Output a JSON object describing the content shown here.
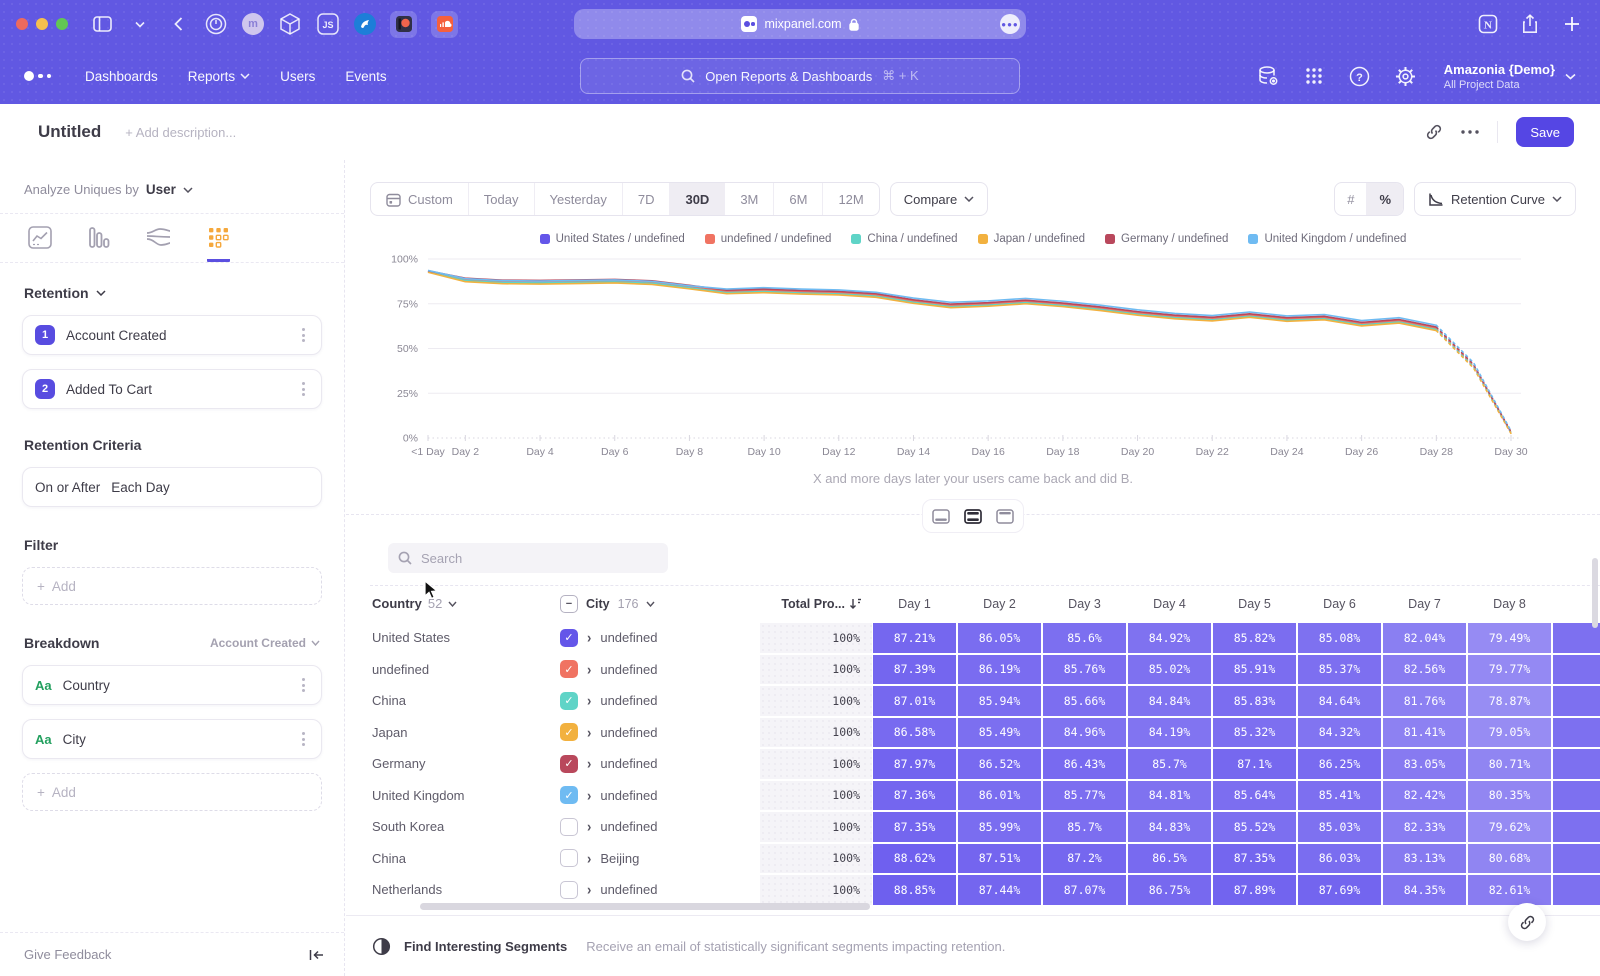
{
  "browser": {
    "url": "mixpanel.com",
    "tab_icons": [
      "sidebar-toggle",
      "tabs-chevron",
      "back",
      "onepassword",
      "m-app",
      "cube-app",
      "js-app",
      "bird-app",
      "patreon",
      "soundcloud"
    ],
    "right_icons": [
      "notion",
      "share",
      "new-tab"
    ]
  },
  "nav": {
    "menu": [
      "Dashboards",
      "Reports",
      "Users",
      "Events"
    ],
    "menu_with_chevron": "Reports",
    "search_placeholder": "Open Reports & Dashboards",
    "search_shortcut": "⌘ + K",
    "project_name": "Amazonia {Demo}",
    "project_scope": "All Project Data"
  },
  "report_header": {
    "title": "Untitled",
    "description_placeholder": "+ Add description...",
    "save_label": "Save"
  },
  "sidebar": {
    "analyze_label": "Analyze Uniques by",
    "analyze_value": "User",
    "tabs": [
      "insights",
      "funnels",
      "flows",
      "retention"
    ],
    "active_tab": "retention",
    "section_label": "Retention",
    "steps": [
      {
        "num": "1",
        "label": "Account Created"
      },
      {
        "num": "2",
        "label": "Added To Cart"
      }
    ],
    "criteria_heading": "Retention Criteria",
    "criteria_left": "On or After",
    "criteria_right": "Each Day",
    "filter_heading": "Filter",
    "add_label": "Add",
    "breakdown_heading": "Breakdown",
    "breakdown_event": "Account Created",
    "breakdowns": [
      {
        "type": "Aa",
        "label": "Country"
      },
      {
        "type": "Aa",
        "label": "City"
      }
    ],
    "give_feedback": "Give Feedback"
  },
  "toolbar": {
    "ranges": [
      "Custom",
      "Today",
      "Yesterday",
      "7D",
      "30D",
      "3M",
      "6M",
      "12M"
    ],
    "active_range": "30D",
    "compare_label": "Compare",
    "units": [
      "#",
      "%"
    ],
    "active_unit": "%",
    "chart_type": "Retention Curve"
  },
  "chart_caption": "X and more days later your users came back and did B.",
  "chart_data": {
    "type": "line",
    "title": "Retention curve by Country / City breakdown",
    "x_tick_labels": [
      "<1 Day",
      "Day 2",
      "Day 4",
      "Day 6",
      "Day 8",
      "Day 10",
      "Day 12",
      "Day 14",
      "Day 16",
      "Day 18",
      "Day 20",
      "Day 22",
      "Day 24",
      "Day 26",
      "Day 28",
      "Day 30"
    ],
    "y_tick_labels": [
      "100%",
      "75%",
      "50%",
      "25%",
      "0%"
    ],
    "y_tick_values": [
      100,
      75,
      50,
      25,
      0
    ],
    "ylim": [
      0,
      100
    ],
    "grid": true,
    "legend_position": "top",
    "dashed_from_index": 27,
    "series": [
      {
        "name": "United States / undefined",
        "color": "#6456E9",
        "values": [
          93,
          88.3,
          87.2,
          87,
          87.3,
          87.6,
          86.8,
          84.3,
          81.6,
          82.2,
          81.4,
          80.9,
          79.6,
          76.2,
          73.8,
          74.6,
          76,
          74.4,
          72.2,
          69.6,
          67.6,
          66.4,
          68.4,
          66.2,
          67,
          63.6,
          65.2,
          61,
          40,
          3
        ]
      },
      {
        "name": "undefined / undefined",
        "color": "#F07362",
        "values": [
          93.2,
          88.7,
          87.6,
          87.4,
          87.7,
          88,
          87.2,
          84.7,
          82,
          82.6,
          81.8,
          81.3,
          80,
          76.6,
          74.2,
          75,
          76.4,
          74.8,
          72.6,
          70,
          68,
          66.8,
          68.8,
          66.6,
          67.4,
          64,
          65.6,
          61.4,
          40.4,
          3.2
        ]
      },
      {
        "name": "China / undefined",
        "color": "#5FD4C7",
        "values": [
          92.8,
          87.9,
          86.8,
          86.6,
          86.9,
          87.2,
          86.4,
          83.9,
          81.2,
          81.8,
          81,
          80.5,
          79.2,
          75.8,
          73.4,
          74.2,
          75.6,
          74,
          71.8,
          69.2,
          67.2,
          66,
          68,
          65.8,
          66.6,
          63.2,
          64.8,
          60.6,
          39.6,
          2.8
        ]
      },
      {
        "name": "Japan / undefined",
        "color": "#F2B13F",
        "values": [
          92.6,
          87.3,
          86.2,
          86,
          86.3,
          86.6,
          85.8,
          83.3,
          80.6,
          81.2,
          80.4,
          79.9,
          78.6,
          75.2,
          72.8,
          73.6,
          75,
          73.4,
          71.2,
          68.6,
          66.6,
          65.4,
          67.4,
          65.2,
          66,
          62.6,
          64.2,
          60,
          39,
          2.5
        ]
      },
      {
        "name": "Germany / undefined",
        "color": "#B9485C",
        "values": [
          93.4,
          89.3,
          88.2,
          88,
          88.3,
          88.6,
          87.8,
          85.3,
          82.6,
          83.2,
          82.4,
          81.9,
          80.6,
          77.2,
          74.8,
          75.6,
          77,
          75.4,
          73.2,
          70.6,
          68.6,
          67.4,
          69.4,
          67.2,
          68,
          64.6,
          66.2,
          62,
          41,
          3.5
        ]
      },
      {
        "name": "United Kingdom / undefined",
        "color": "#6FBBF2",
        "values": [
          93.6,
          89,
          87.9,
          87.7,
          88,
          88.3,
          87.5,
          85,
          83.2,
          84,
          83.2,
          82.7,
          81.4,
          78.2,
          75.8,
          76.6,
          78,
          76.4,
          74.2,
          71.6,
          69.6,
          68.4,
          70.4,
          68.2,
          69,
          65.6,
          67.2,
          63,
          42,
          4
        ]
      }
    ]
  },
  "table": {
    "search_placeholder": "Search",
    "col_country": {
      "label": "Country",
      "count": "52"
    },
    "col_city": {
      "label": "City",
      "count": "176"
    },
    "col_total": "Total Pro...",
    "day_headers": [
      "Day 1",
      "Day 2",
      "Day 3",
      "Day 4",
      "Day 5",
      "Day 6",
      "Day 7",
      "Day 8"
    ],
    "rows": [
      {
        "country": "United States",
        "city": "undefined",
        "checked": true,
        "checkbox_color": "#6456E9",
        "total": "100%",
        "days": [
          "87.21%",
          "86.05%",
          "85.6%",
          "84.92%",
          "85.82%",
          "85.08%",
          "82.04%",
          "79.49%"
        ]
      },
      {
        "country": "undefined",
        "city": "undefined",
        "checked": true,
        "checkbox_color": "#F07362",
        "total": "100%",
        "days": [
          "87.39%",
          "86.19%",
          "85.76%",
          "85.02%",
          "85.91%",
          "85.37%",
          "82.56%",
          "79.77%"
        ]
      },
      {
        "country": "China",
        "city": "undefined",
        "checked": true,
        "checkbox_color": "#5FD4C7",
        "total": "100%",
        "days": [
          "87.01%",
          "85.94%",
          "85.66%",
          "84.84%",
          "85.83%",
          "84.64%",
          "81.76%",
          "78.87%"
        ]
      },
      {
        "country": "Japan",
        "city": "undefined",
        "checked": true,
        "checkbox_color": "#F2B13F",
        "total": "100%",
        "days": [
          "86.58%",
          "85.49%",
          "84.96%",
          "84.19%",
          "85.32%",
          "84.32%",
          "81.41%",
          "79.05%"
        ]
      },
      {
        "country": "Germany",
        "city": "undefined",
        "checked": true,
        "checkbox_color": "#B9485C",
        "total": "100%",
        "days": [
          "87.97%",
          "86.52%",
          "86.43%",
          "85.7%",
          "87.1%",
          "86.25%",
          "83.05%",
          "80.71%"
        ]
      },
      {
        "country": "United Kingdom",
        "city": "undefined",
        "checked": true,
        "checkbox_color": "#6FBBF2",
        "total": "100%",
        "days": [
          "87.36%",
          "86.01%",
          "85.77%",
          "84.81%",
          "85.64%",
          "85.41%",
          "82.42%",
          "80.35%"
        ]
      },
      {
        "country": "South Korea",
        "city": "undefined",
        "checked": false,
        "checkbox_color": null,
        "total": "100%",
        "days": [
          "87.35%",
          "85.99%",
          "85.7%",
          "84.83%",
          "85.52%",
          "85.03%",
          "82.33%",
          "79.62%"
        ]
      },
      {
        "country": "China",
        "city": "Beijing",
        "checked": false,
        "checkbox_color": null,
        "total": "100%",
        "days": [
          "88.62%",
          "87.51%",
          "87.2%",
          "86.5%",
          "87.35%",
          "86.03%",
          "83.13%",
          "80.68%"
        ]
      },
      {
        "country": "Netherlands",
        "city": "undefined",
        "checked": false,
        "checkbox_color": null,
        "total": "100%",
        "days": [
          "88.85%",
          "87.44%",
          "87.07%",
          "86.75%",
          "87.89%",
          "87.69%",
          "84.35%",
          "82.61%"
        ]
      }
    ]
  },
  "footer": {
    "title": "Find Interesting Segments",
    "description": "Receive an email of statistically significant segments impacting retention."
  },
  "colors": {
    "accent": "#5546E4",
    "chrome_purple": "#6158E2",
    "cell_purple": "#594AEC",
    "active_tab_orange": "#F5A83C"
  }
}
